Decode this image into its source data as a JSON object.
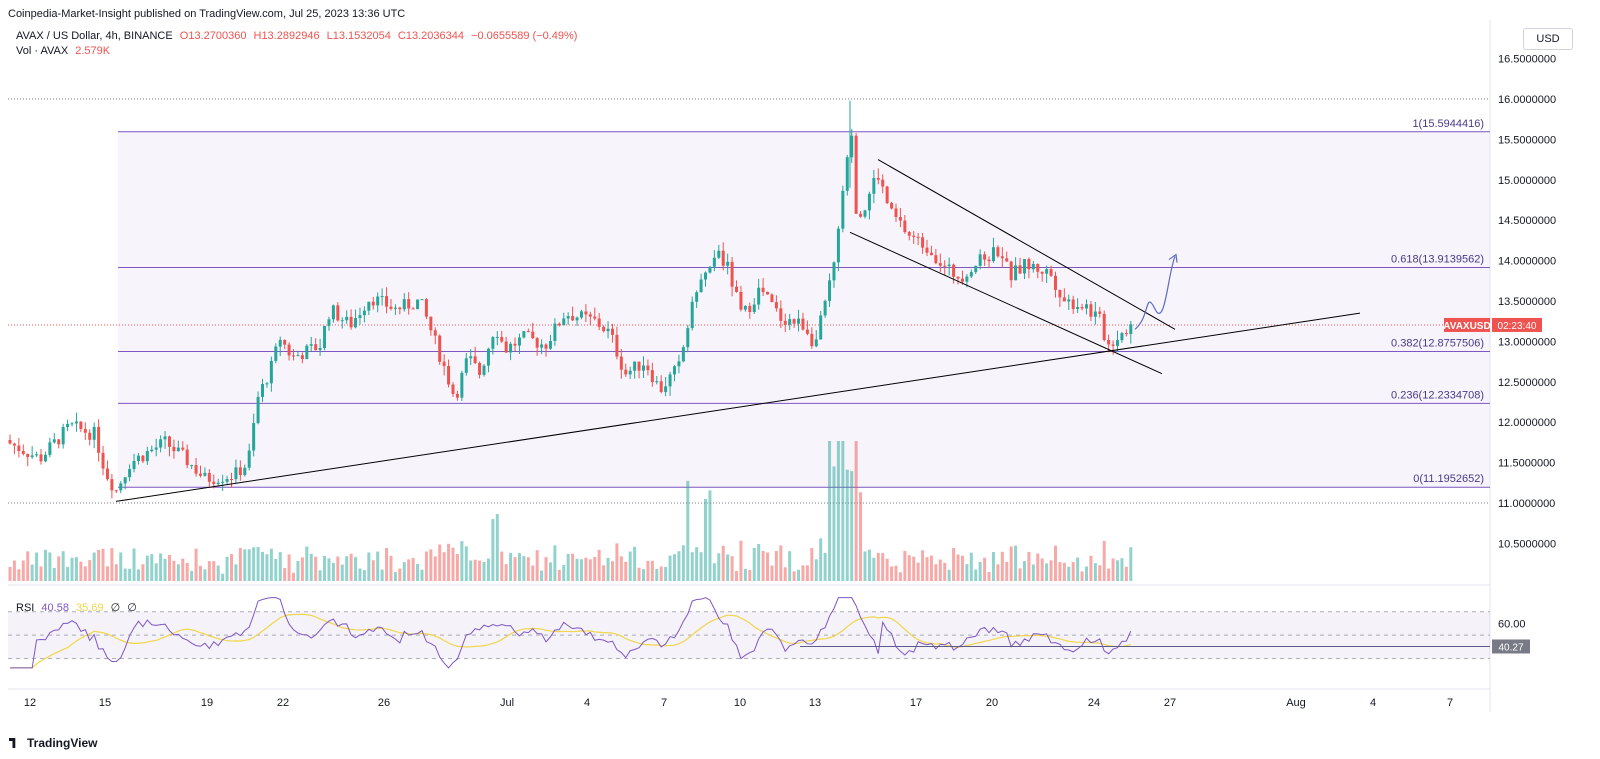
{
  "publisher": "Coinpedia-Market-Insight published on TradingView.com, Jul 25, 2023 13:36 UTC",
  "symbol": "AVAX / US Dollar, 4h, BINANCE",
  "ohlc": {
    "o": "O13.2700360",
    "h": "H13.2892946",
    "l": "L13.1532054",
    "c": "C13.2036344",
    "chg": "−0.0655589 (−0.49%)"
  },
  "vol_label": "Vol · AVAX",
  "vol_value": "2.579K",
  "currency": "USD",
  "price_tag": {
    "ticker": "AVAXUSD",
    "timer": "02:23:40"
  },
  "rsi": {
    "label": "RSI",
    "v1": "40.58",
    "v2": "35.69",
    "v3": "∅",
    "v4": "∅",
    "tag": "40.27"
  },
  "brand": "TradingView",
  "colors": {
    "up": "#26a69a",
    "down": "#ef5350",
    "fib": "#7e57c2",
    "line": "#000000"
  },
  "chart_data": {
    "type": "candlestick",
    "price_axis": {
      "ticks": [
        16.5,
        16.0,
        15.5,
        15.0,
        14.5,
        14.0,
        13.5,
        13.0,
        12.5,
        12.0,
        11.5,
        11.0,
        10.5
      ],
      "labels": [
        "16.5000000",
        "16.0000000",
        "15.5000000",
        "15.0000000",
        "14.5000000",
        "14.0000000",
        "13.5000000",
        "13.0000000",
        "12.5000000",
        "12.0000000",
        "11.5000000",
        "11.0000000",
        "10.5000000"
      ]
    },
    "time_axis": {
      "labels": [
        "12",
        "15",
        "19",
        "22",
        "26",
        "Jul",
        "4",
        "7",
        "10",
        "13",
        "17",
        "20",
        "24",
        "27",
        "Aug",
        "4",
        "7"
      ]
    },
    "fib_levels": [
      {
        "label": "1(15.5944416)",
        "price": 15.5944416
      },
      {
        "label": "0.618(13.9139562)",
        "price": 13.9139562
      },
      {
        "label": "0.382(12.8757506)",
        "price": 12.8757506
      },
      {
        "label": "0.236(12.2334708)",
        "price": 12.2334708
      },
      {
        "label": "0(11.1952652)",
        "price": 11.1952652
      }
    ],
    "rsi_axis": {
      "label": "60.00",
      "value": 60
    }
  }
}
